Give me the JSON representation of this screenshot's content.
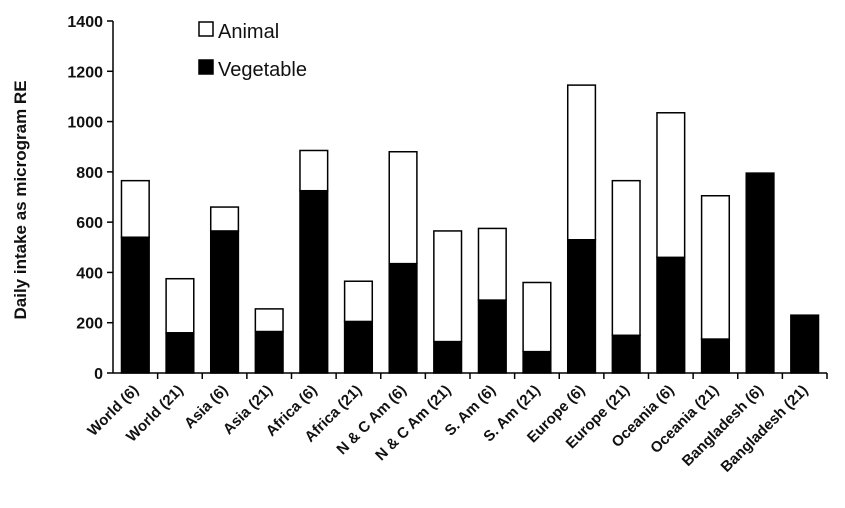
{
  "chart_data": {
    "type": "bar",
    "stacked": true,
    "ylabel": "Daily intake as microgram RE",
    "ylim": [
      0,
      1400
    ],
    "yticks": [
      "0",
      "200",
      "400",
      "600",
      "800",
      "1000",
      "1200",
      "1400"
    ],
    "categories": [
      "World (6)",
      "World (21)",
      "Asia (6)",
      "Asia (21)",
      "Africa (6)",
      "Africa (21)",
      "N & C Am (6)",
      "N & C Am (21)",
      "S. Am (6)",
      "S. Am (21)",
      "Europe (6)",
      "Europe (21)",
      "Oceania (6)",
      "Oceania (21)",
      "Bangladesh (6)",
      "Bangladesh (21)"
    ],
    "series": [
      {
        "name": "Vegetable",
        "color": "#000000",
        "values": [
          540,
          160,
          565,
          165,
          725,
          205,
          435,
          125,
          290,
          85,
          530,
          150,
          460,
          135,
          795,
          230
        ]
      },
      {
        "name": "Animal",
        "color": "#ffffff",
        "values": [
          225,
          215,
          95,
          90,
          160,
          160,
          445,
          440,
          285,
          275,
          615,
          615,
          575,
          570,
          0,
          0
        ]
      }
    ],
    "legend": {
      "position": "top-left",
      "order": [
        "Animal",
        "Vegetable"
      ]
    },
    "grid": false
  }
}
